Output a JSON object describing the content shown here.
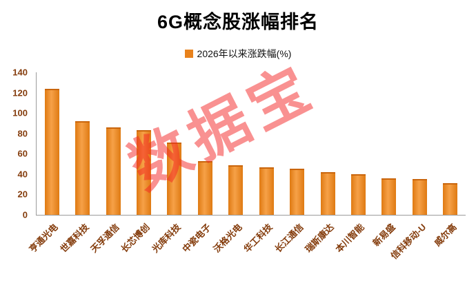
{
  "title": "6G概念股涨幅排名",
  "legend": {
    "label": "2026年以来涨跌幅(%)",
    "marker_color": "#E8821C"
  },
  "watermark": "数据宝",
  "chart_data": {
    "type": "bar",
    "title": "6G概念股涨幅排名",
    "legend_entries": [
      "2026年以来涨跌幅(%)"
    ],
    "legend_position": "top",
    "categories": [
      "亨通光电",
      "世嘉科技",
      "天孚通信",
      "长芯博创",
      "光库科技",
      "中瓷电子",
      "沃格光电",
      "华工科技",
      "长江通信",
      "瑞斯康达",
      "本川智能",
      "新易盛",
      "信科移动-U",
      "威尔高"
    ],
    "values": [
      124,
      92,
      86,
      83,
      71,
      53,
      49,
      47,
      45,
      42,
      40,
      36,
      35,
      31
    ],
    "xlabel": "",
    "ylabel": "",
    "ylim": [
      0,
      140
    ],
    "ytick_interval": 20,
    "grid": false,
    "bar_color": "#E8821C",
    "axis_label_color": "#843C0C"
  }
}
